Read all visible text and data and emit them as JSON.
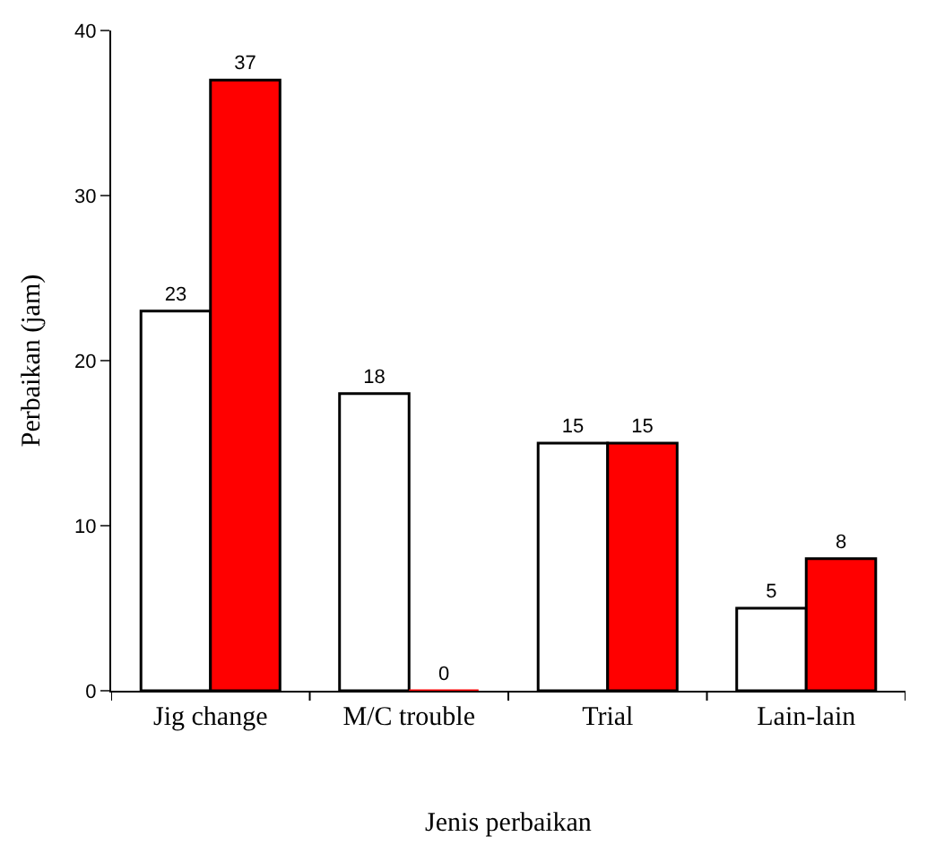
{
  "chart_data": {
    "type": "bar",
    "xlabel": "Jenis perbaikan",
    "ylabel": "Perbaikan (jam)",
    "categories": [
      "Jig change",
      "M/C trouble",
      "Trial",
      "Lain-lain"
    ],
    "series": [
      {
        "color": "#ffffff",
        "values": [
          23,
          18,
          15,
          5
        ]
      },
      {
        "color": "#ff0000",
        "values": [
          37,
          0,
          15,
          8
        ]
      }
    ],
    "ylim": [
      0,
      40
    ],
    "yticks": [
      0,
      10,
      20,
      30,
      40
    ],
    "data_labels": true
  }
}
